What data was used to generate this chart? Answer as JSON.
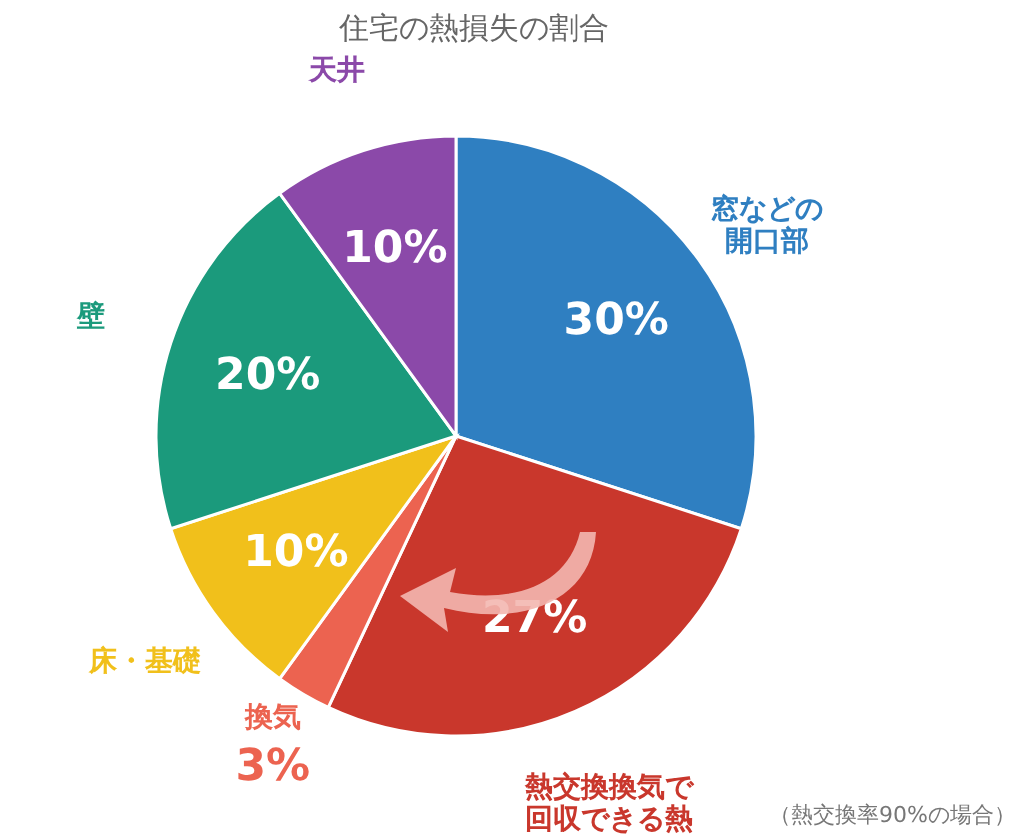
{
  "chart_data": {
    "type": "pie",
    "title": "住宅の熱損失の割合",
    "categories": [
      "窓などの開口部",
      "熱交換換気で回収できる熱",
      "換気",
      "床・基礎",
      "壁",
      "天井"
    ],
    "values": [
      30,
      27,
      3,
      10,
      20,
      10
    ],
    "colors": [
      "#2f7fc1",
      "#c9372c",
      "#ec6350",
      "#f1c01b",
      "#1b9a7c",
      "#8b49a9"
    ],
    "value_labels": [
      "30%",
      "27%",
      "3%",
      "10%",
      "20%",
      "10%"
    ],
    "annotations": [
      "（熱交換率90%の場合）"
    ]
  }
}
